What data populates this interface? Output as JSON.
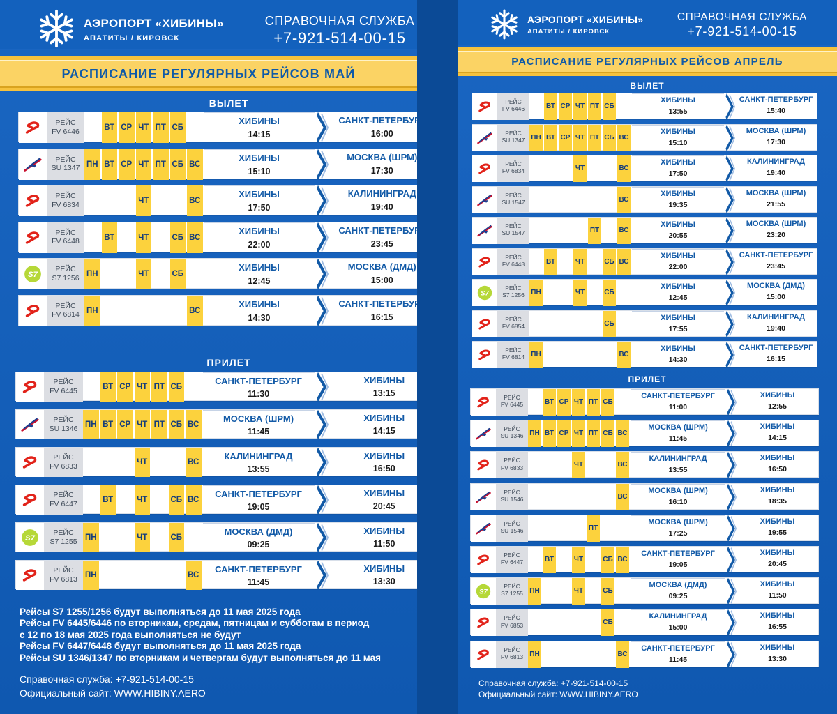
{
  "brand": {
    "name": "АЭРОПОРТ «ХИБИНЫ»",
    "sub": "АПАТИТЫ / КИРОВСК",
    "help_label": "СПРАВОЧНАЯ СЛУЖБА",
    "phone": "+7-921-514-00-15"
  },
  "colors": {
    "bg": "#1464c0",
    "gold": "#f6c23d",
    "day": "#fcd23d",
    "city": "#125aa7",
    "s7": "#b6d838",
    "red": "#e2231a"
  },
  "left": {
    "title": "РАСПИСАНИЕ РЕГУЛЯРНЫХ РЕЙСОВ МАЙ",
    "dep_label": "ВЫЛЕТ",
    "arr_label": "ПРИЛЕТ",
    "departures": [
      {
        "airline": "rossiya",
        "fl1": "РЕЙС",
        "fl2": "FV 6446",
        "days": [
          "",
          "ВТ",
          "СР",
          "ЧТ",
          "ПТ",
          "СБ",
          ""
        ],
        "from": "ХИБИНЫ",
        "t1": "14:15",
        "to": "САНКТ-ПЕТЕРБУРГ",
        "t2": "16:00"
      },
      {
        "airline": "aeroflot",
        "fl1": "РЕЙС",
        "fl2": "SU 1347",
        "days": [
          "ПН",
          "ВТ",
          "СР",
          "ЧТ",
          "ПТ",
          "СБ",
          "ВС"
        ],
        "from": "ХИБИНЫ",
        "t1": "15:10",
        "to": "МОСКВА (ШРМ)",
        "t2": "17:30"
      },
      {
        "airline": "rossiya",
        "fl1": "РЕЙС",
        "fl2": "FV 6834",
        "days": [
          "",
          "",
          "",
          "ЧТ",
          "",
          "",
          "ВС"
        ],
        "from": "ХИБИНЫ",
        "t1": "17:50",
        "to": "КАЛИНИНГРАД",
        "t2": "19:40"
      },
      {
        "airline": "rossiya",
        "fl1": "РЕЙС",
        "fl2": "FV 6448",
        "days": [
          "",
          "ВТ",
          "",
          "ЧТ",
          "",
          "СБ",
          "ВС"
        ],
        "from": "ХИБИНЫ",
        "t1": "22:00",
        "to": "САНКТ-ПЕТЕРБУРГ",
        "t2": "23:45"
      },
      {
        "airline": "s7",
        "fl1": "РЕЙС",
        "fl2": "S7 1256",
        "days": [
          "ПН",
          "",
          "",
          "ЧТ",
          "",
          "СБ",
          ""
        ],
        "from": "ХИБИНЫ",
        "t1": "12:45",
        "to": "МОСКВА (ДМД)",
        "t2": "15:00"
      },
      {
        "airline": "rossiya",
        "fl1": "РЕЙС",
        "fl2": "FV 6814",
        "days": [
          "ПН",
          "",
          "",
          "",
          "",
          "",
          "ВС"
        ],
        "from": "ХИБИНЫ",
        "t1": "14:30",
        "to": "САНКТ-ПЕТЕРБУРГ",
        "t2": "16:15"
      }
    ],
    "arrivals": [
      {
        "airline": "rossiya",
        "fl1": "РЕЙС",
        "fl2": "FV 6445",
        "days": [
          "",
          "ВТ",
          "СР",
          "ЧТ",
          "ПТ",
          "СБ",
          ""
        ],
        "from": "САНКТ-ПЕТЕРБУРГ",
        "t1": "11:30",
        "to": "ХИБИНЫ",
        "t2": "13:15"
      },
      {
        "airline": "aeroflot",
        "fl1": "РЕЙС",
        "fl2": "SU 1346",
        "days": [
          "ПН",
          "ВТ",
          "СР",
          "ЧТ",
          "ПТ",
          "СБ",
          "ВС"
        ],
        "from": "МОСКВА (ШРМ)",
        "t1": "11:45",
        "to": "ХИБИНЫ",
        "t2": "14:15"
      },
      {
        "airline": "rossiya",
        "fl1": "РЕЙС",
        "fl2": "FV 6833",
        "days": [
          "",
          "",
          "",
          "ЧТ",
          "",
          "",
          "ВС"
        ],
        "from": "КАЛИНИНГРАД",
        "t1": "13:55",
        "to": "ХИБИНЫ",
        "t2": "16:50"
      },
      {
        "airline": "rossiya",
        "fl1": "РЕЙС",
        "fl2": "FV 6447",
        "days": [
          "",
          "ВТ",
          "",
          "ЧТ",
          "",
          "СБ",
          "ВС"
        ],
        "from": "САНКТ-ПЕТЕРБУРГ",
        "t1": "19:05",
        "to": "ХИБИНЫ",
        "t2": "20:45"
      },
      {
        "airline": "s7",
        "fl1": "РЕЙС",
        "fl2": "S7 1255",
        "days": [
          "ПН",
          "",
          "",
          "ЧТ",
          "",
          "СБ",
          ""
        ],
        "from": "МОСКВА (ДМД)",
        "t1": "09:25",
        "to": "ХИБИНЫ",
        "t2": "11:50"
      },
      {
        "airline": "rossiya",
        "fl1": "РЕЙС",
        "fl2": "FV 6813",
        "days": [
          "ПН",
          "",
          "",
          "",
          "",
          "",
          "ВС"
        ],
        "from": "САНКТ-ПЕТЕРБУРГ",
        "t1": "11:45",
        "to": "ХИБИНЫ",
        "t2": "13:30"
      }
    ],
    "notes": [
      "Рейсы S7 1255/1256 будут выполняться до 11 мая 2025 года",
      "Рейсы FV 6445/6446 по вторникам, средам, пятницам и субботам в период",
      "с 12 по 18 мая 2025 года выполняться не будут",
      "Рейсы FV 6447/6448 будут выполняться до 11 мая 2025 года",
      "Рейсы SU 1346/1347 по вторникам и четвергам будут выполняться до 11 мая"
    ],
    "help": "Справочная служба: +7-921-514-00-15",
    "site": "Официальный сайт: WWW.HIBINY.AERO"
  },
  "right": {
    "title": "РАСПИСАНИЕ РЕГУЛЯРНЫХ РЕЙСОВ АПРЕЛЬ",
    "dep_label": "ВЫЛЕТ",
    "arr_label": "ПРИЛЕТ",
    "departures": [
      {
        "airline": "rossiya",
        "fl1": "РЕЙС",
        "fl2": "FV 6446",
        "days": [
          "",
          "ВТ",
          "СР",
          "ЧТ",
          "ПТ",
          "СБ",
          ""
        ],
        "from": "ХИБИНЫ",
        "t1": "13:55",
        "to": "САНКТ-ПЕТЕРБУРГ",
        "t2": "15:40"
      },
      {
        "airline": "aeroflot",
        "fl1": "РЕЙС",
        "fl2": "SU 1347",
        "days": [
          "ПН",
          "ВТ",
          "СР",
          "ЧТ",
          "ПТ",
          "СБ",
          "ВС"
        ],
        "from": "ХИБИНЫ",
        "t1": "15:10",
        "to": "МОСКВА (ШРМ)",
        "t2": "17:30"
      },
      {
        "airline": "rossiya",
        "fl1": "РЕЙС",
        "fl2": "FV 6834",
        "days": [
          "",
          "",
          "",
          "ЧТ",
          "",
          "",
          "ВС"
        ],
        "from": "ХИБИНЫ",
        "t1": "17:50",
        "to": "КАЛИНИНГРАД",
        "t2": "19:40"
      },
      {
        "airline": "aeroflot",
        "fl1": "РЕЙС",
        "fl2": "SU 1547",
        "days": [
          "",
          "",
          "",
          "",
          "",
          "",
          "ВС"
        ],
        "from": "ХИБИНЫ",
        "t1": "19:35",
        "to": "МОСКВА (ШРМ)",
        "t2": "21:55"
      },
      {
        "airline": "aeroflot",
        "fl1": "РЕЙС",
        "fl2": "SU 1547",
        "days": [
          "",
          "",
          "",
          "",
          "ПТ",
          "",
          "ВС"
        ],
        "from": "ХИБИНЫ",
        "t1": "20:55",
        "to": "МОСКВА (ШРМ)",
        "t2": "23:20"
      },
      {
        "airline": "rossiya",
        "fl1": "РЕЙС",
        "fl2": "FV 6448",
        "days": [
          "",
          "ВТ",
          "",
          "ЧТ",
          "",
          "СБ",
          "ВС"
        ],
        "from": "ХИБИНЫ",
        "t1": "22:00",
        "to": "САНКТ-ПЕТЕРБУРГ",
        "t2": "23:45"
      },
      {
        "airline": "s7",
        "fl1": "РЕЙС",
        "fl2": "S7 1256",
        "days": [
          "ПН",
          "",
          "",
          "ЧТ",
          "",
          "СБ",
          ""
        ],
        "from": "ХИБИНЫ",
        "t1": "12:45",
        "to": "МОСКВА (ДМД)",
        "t2": "15:00"
      },
      {
        "airline": "rossiya",
        "fl1": "РЕЙС",
        "fl2": "FV 6854",
        "days": [
          "",
          "",
          "",
          "",
          "",
          "СБ",
          ""
        ],
        "from": "ХИБИНЫ",
        "t1": "17:55",
        "to": "КАЛИНИНГРАД",
        "t2": "19:40"
      },
      {
        "airline": "rossiya",
        "fl1": "РЕЙС",
        "fl2": "FV 6814",
        "days": [
          "ПН",
          "",
          "",
          "",
          "",
          "",
          "ВС"
        ],
        "from": "ХИБИНЫ",
        "t1": "14:30",
        "to": "САНКТ-ПЕТЕРБУРГ",
        "t2": "16:15"
      }
    ],
    "arrivals": [
      {
        "airline": "rossiya",
        "fl1": "РЕЙС",
        "fl2": "FV 6445",
        "days": [
          "",
          "ВТ",
          "СР",
          "ЧТ",
          "ПТ",
          "СБ",
          ""
        ],
        "from": "САНКТ-ПЕТЕРБУРГ",
        "t1": "11:00",
        "to": "ХИБИНЫ",
        "t2": "12:55"
      },
      {
        "airline": "aeroflot",
        "fl1": "РЕЙС",
        "fl2": "SU 1346",
        "days": [
          "ПН",
          "ВТ",
          "СР",
          "ЧТ",
          "ПТ",
          "СБ",
          "ВС"
        ],
        "from": "МОСКВА (ШРМ)",
        "t1": "11:45",
        "to": "ХИБИНЫ",
        "t2": "14:15"
      },
      {
        "airline": "rossiya",
        "fl1": "РЕЙС",
        "fl2": "FV 6833",
        "days": [
          "",
          "",
          "",
          "ЧТ",
          "",
          "",
          "ВС"
        ],
        "from": "КАЛИНИНГРАД",
        "t1": "13:55",
        "to": "ХИБИНЫ",
        "t2": "16:50"
      },
      {
        "airline": "aeroflot",
        "fl1": "РЕЙС",
        "fl2": "SU 1546",
        "days": [
          "",
          "",
          "",
          "",
          "",
          "",
          "ВС"
        ],
        "from": "МОСКВА (ШРМ)",
        "t1": "16:10",
        "to": "ХИБИНЫ",
        "t2": "18:35"
      },
      {
        "airline": "aeroflot",
        "fl1": "РЕЙС",
        "fl2": "SU 1546",
        "days": [
          "",
          "",
          "",
          "",
          "ПТ",
          "",
          ""
        ],
        "from": "МОСКВА (ШРМ)",
        "t1": "17:25",
        "to": "ХИБИНЫ",
        "t2": "19:55"
      },
      {
        "airline": "rossiya",
        "fl1": "РЕЙС",
        "fl2": "FV 6447",
        "days": [
          "",
          "ВТ",
          "",
          "ЧТ",
          "",
          "СБ",
          "ВС"
        ],
        "from": "САНКТ-ПЕТЕРБУРГ",
        "t1": "19:05",
        "to": "ХИБИНЫ",
        "t2": "20:45"
      },
      {
        "airline": "s7",
        "fl1": "РЕЙС",
        "fl2": "S7 1255",
        "days": [
          "ПН",
          "",
          "",
          "ЧТ",
          "",
          "СБ",
          ""
        ],
        "from": "МОСКВА (ДМД)",
        "t1": "09:25",
        "to": "ХИБИНЫ",
        "t2": "11:50"
      },
      {
        "airline": "rossiya",
        "fl1": "РЕЙС",
        "fl2": "FV 6853",
        "days": [
          "",
          "",
          "",
          "",
          "",
          "СБ",
          ""
        ],
        "from": "КАЛИНИНГРАД",
        "t1": "15:00",
        "to": "ХИБИНЫ",
        "t2": "16:55"
      },
      {
        "airline": "rossiya",
        "fl1": "РЕЙС",
        "fl2": "FV 6813",
        "days": [
          "ПН",
          "",
          "",
          "",
          "",
          "",
          "ВС"
        ],
        "from": "САНКТ-ПЕТЕРБУРГ",
        "t1": "11:45",
        "to": "ХИБИНЫ",
        "t2": "13:30"
      }
    ],
    "help": "Справочная служба: +7-921-514-00-15",
    "site": "Официальный сайт: WWW.HIBINY.AERO"
  }
}
